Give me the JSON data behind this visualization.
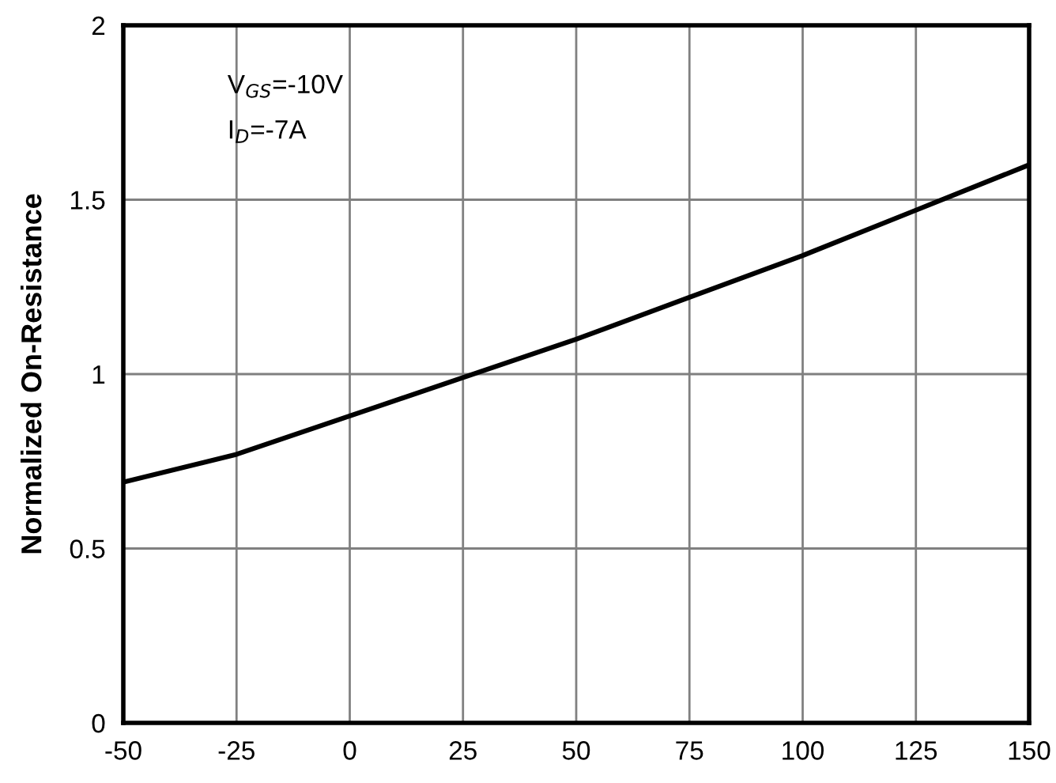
{
  "chart_data": {
    "type": "line",
    "ylabel": "Normalized On-Resistance",
    "annotations": [
      "V$_{GS}$=-10V",
      "I$_{D}$=-7A"
    ],
    "x": [
      -50,
      -25,
      0,
      25,
      50,
      75,
      100,
      125,
      150
    ],
    "series": [
      {
        "color": "#000000",
        "values": [
          0.69,
          0.77,
          0.88,
          0.99,
          1.1,
          1.22,
          1.34,
          1.47,
          1.6
        ]
      }
    ],
    "xlim": [
      -50,
      150
    ],
    "xticks": [
      -50,
      -25,
      0,
      25,
      50,
      75,
      100,
      125,
      150
    ],
    "ylim": [
      0,
      2
    ],
    "yticks": [
      0,
      0.5,
      1,
      1.5,
      2
    ],
    "grid": true,
    "legend": false,
    "marker": "none",
    "line_style": "solid"
  }
}
